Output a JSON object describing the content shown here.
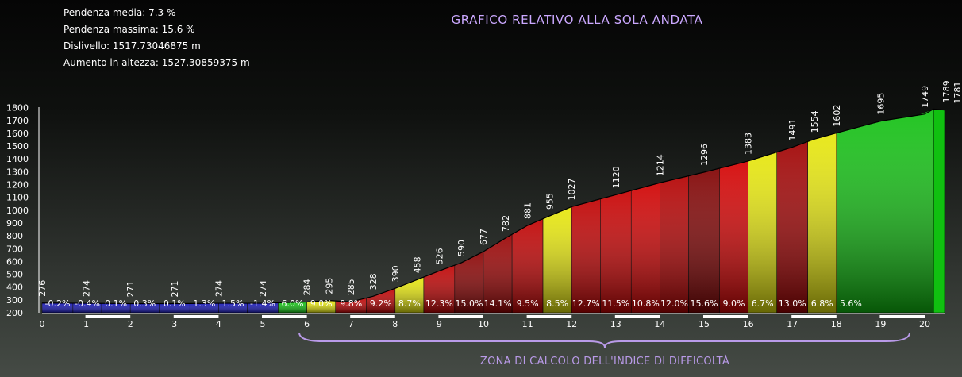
{
  "stats": {
    "avg_grade": "Pendenza media: 7.3 %",
    "max_grade": "Pendenza massima: 15.6 %",
    "elevation_diff": "Dislivello: 1517.73046875 m",
    "elevation_gain": "Aumento in altezza: 1527.30859375 m"
  },
  "chart_data": {
    "type": "area",
    "title": "GRAFICO RELATIVO ALLA SOLA ANDATA",
    "zone_label": "ZONA DI CALCOLO DELL'INDICE DI DIFFICOLTÀ",
    "xlabel": "",
    "ylabel": "",
    "y_ticks": [
      200,
      300,
      400,
      500,
      600,
      700,
      800,
      900,
      1000,
      1100,
      1200,
      1300,
      1400,
      1500,
      1600,
      1700,
      1800
    ],
    "x_ticks": [
      0,
      1,
      2,
      3,
      4,
      5,
      6,
      7,
      8,
      9,
      10,
      11,
      12,
      13,
      14,
      15,
      16,
      17,
      18,
      19,
      20
    ],
    "ylim": [
      200,
      1800
    ],
    "x": [
      0,
      0.5,
      1,
      1.5,
      2,
      2.5,
      3,
      3.5,
      4,
      4.5,
      5,
      5.5,
      6,
      6.5,
      7,
      7.5,
      8,
      8.5,
      9,
      9.5,
      10,
      10.5,
      11,
      11.5,
      12,
      12.5,
      13,
      13.5,
      14,
      14.5,
      15,
      15.5,
      16,
      16.5,
      17,
      17.5,
      18,
      18.5,
      19,
      19.5,
      20,
      20.2
    ],
    "elevation": [
      276,
      274,
      271,
      271,
      274,
      274,
      284,
      295,
      285,
      328,
      390,
      458,
      526,
      590,
      677,
      782,
      881,
      955,
      1027,
      1120,
      1214,
      1296,
      1383,
      1491,
      1554,
      1602,
      1695,
      1749,
      1789,
      1781
    ],
    "elevation_x": [
      0,
      1,
      2,
      3,
      4,
      5,
      6,
      6.5,
      7,
      7.5,
      8,
      8.5,
      9,
      9.5,
      10,
      10.5,
      11,
      11.5,
      12,
      13,
      14,
      15,
      16,
      17,
      17.5,
      18,
      19,
      20,
      20.2,
      20.45
    ],
    "segments": [
      {
        "x0": 0,
        "x1": 0.7,
        "grade": "-0.2%",
        "color": "#1414b4"
      },
      {
        "x0": 0.7,
        "x1": 1.35,
        "grade": "-0.4%",
        "color": "#1414b4"
      },
      {
        "x0": 1.35,
        "x1": 2,
        "grade": "0.1%",
        "color": "#1414b4"
      },
      {
        "x0": 2,
        "x1": 2.65,
        "grade": "0.3%",
        "color": "#1414b4"
      },
      {
        "x0": 2.65,
        "x1": 3.35,
        "grade": "0.1%",
        "color": "#1414b4"
      },
      {
        "x0": 3.35,
        "x1": 4,
        "grade": "1.3%",
        "color": "#1414b4"
      },
      {
        "x0": 4,
        "x1": 4.65,
        "grade": "1.5%",
        "color": "#1414b4"
      },
      {
        "x0": 4.65,
        "x1": 5.35,
        "grade": "-1.4%",
        "color": "#1414b4"
      },
      {
        "x0": 5.35,
        "x1": 6,
        "grade": "6.0%",
        "color": "#10c010"
      },
      {
        "x0": 6,
        "x1": 6.65,
        "grade": "9.0%",
        "color": "#e6e60a"
      },
      {
        "x0": 6.65,
        "x1": 7.35,
        "grade": "9.8%",
        "color": "#c00000"
      },
      {
        "x0": 7.35,
        "x1": 8,
        "grade": "9.2%",
        "color": "#c00000"
      },
      {
        "x0": 8,
        "x1": 8.65,
        "grade": "8.7%",
        "color": "#e6e60a"
      },
      {
        "x0": 8.65,
        "x1": 9.35,
        "grade": "12.3%",
        "color": "#c00000"
      },
      {
        "x0": 9.35,
        "x1": 10,
        "grade": "15.0%",
        "color": "#8a0000"
      },
      {
        "x0": 10,
        "x1": 10.65,
        "grade": "14.1%",
        "color": "#9a0000"
      },
      {
        "x0": 10.65,
        "x1": 11.35,
        "grade": "9.5%",
        "color": "#c00000"
      },
      {
        "x0": 11.35,
        "x1": 12,
        "grade": "8.5%",
        "color": "#e6e60a"
      },
      {
        "x0": 12,
        "x1": 12.65,
        "grade": "12.7%",
        "color": "#c00000"
      },
      {
        "x0": 12.65,
        "x1": 13.35,
        "grade": "11.5%",
        "color": "#c80000"
      },
      {
        "x0": 13.35,
        "x1": 14,
        "grade": "10.8%",
        "color": "#d00000"
      },
      {
        "x0": 14,
        "x1": 14.65,
        "grade": "12.0%",
        "color": "#b40000"
      },
      {
        "x0": 14.65,
        "x1": 15.35,
        "grade": "15.6%",
        "color": "#800000"
      },
      {
        "x0": 15.35,
        "x1": 16,
        "grade": "9.0%",
        "color": "#d40000"
      },
      {
        "x0": 16,
        "x1": 16.65,
        "grade": "6.7%",
        "color": "#e6e60a"
      },
      {
        "x0": 16.65,
        "x1": 17.35,
        "grade": "13.0%",
        "color": "#a00000"
      },
      {
        "x0": 17.35,
        "x1": 18,
        "grade": "6.8%",
        "color": "#e6e60a"
      },
      {
        "x0": 18,
        "x1": 18.65,
        "grade": "5.6%",
        "color": "#10c010"
      }
    ]
  }
}
